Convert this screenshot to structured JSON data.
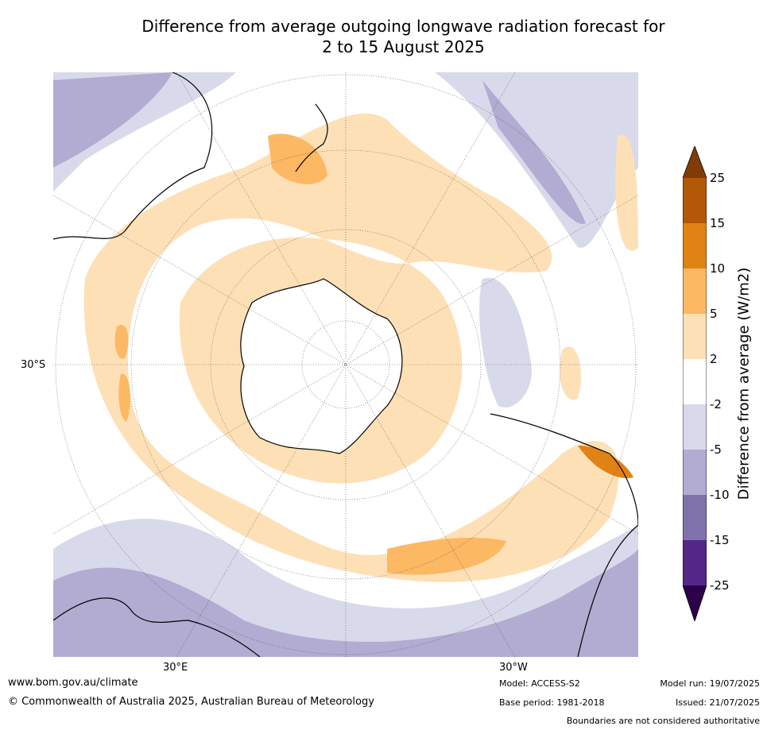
{
  "title_line1": "Difference from average outgoing longwave radiation forecast for",
  "title_line2": "2 to 15 August 2025",
  "axis_labels": {
    "lat_left": "30°S",
    "lon_bottom_left": "30°E",
    "lon_bottom_right": "30°W"
  },
  "colorbar": {
    "title": "Difference from average (W/m2)",
    "ticks": [
      "25",
      "15",
      "10",
      "5",
      "2",
      "-2",
      "-5",
      "-10",
      "-15",
      "-25"
    ],
    "colors": {
      "above_25": "#7f3b08",
      "15_25": "#b35806",
      "10_15": "#e08214",
      "5_10": "#fdb863",
      "2_5": "#fee0b6",
      "neutral": "#ffffff",
      "m5_m2": "#d8daeb",
      "m10_m5": "#b2abd2",
      "m15_m10": "#8073ac",
      "m25_m15": "#542788",
      "below_m25": "#2d004b"
    }
  },
  "footer": {
    "website": "www.bom.gov.au/climate",
    "copyright": "© Commonwealth of Australia 2025, Australian Bureau of Meteorology",
    "model": "Model: ACCESS-S2",
    "base_period": "Base period: 1981-2018",
    "model_run": "Model run: 19/07/2025",
    "issued": "Issued: 21/07/2025",
    "disclaimer": "Boundaries are not considered authoritative"
  }
}
